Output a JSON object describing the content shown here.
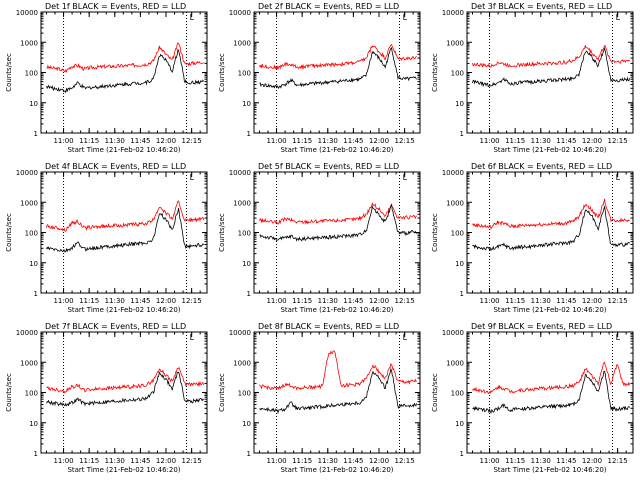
{
  "figure": {
    "background": "#ffffff",
    "axis_color": "#000000"
  },
  "chart_data": [
    {
      "type": "line",
      "title": "Det 1f BLACK = Events, RED = LLD",
      "xlabel": "Start Time (21-Feb-02 10:46:20)",
      "ylabel": "Counts/sec",
      "yscale": "log",
      "ylim": [
        1,
        10000
      ],
      "xlim": [
        10.78,
        12.4
      ],
      "x_ticks": [
        "11:00",
        "11:15",
        "11:30",
        "11:45",
        "12:00",
        "12:15"
      ],
      "y_ticks": [
        "1",
        "10",
        "100",
        "1000",
        "10000"
      ],
      "marker_label": "L",
      "vlines": [
        11.0,
        12.2
      ],
      "marker_time": 12.23,
      "series": [
        {
          "color": "#ff0000",
          "values": [
            150,
            140,
            130,
            110,
            160,
            170,
            130,
            145,
            150,
            155,
            160,
            160,
            165,
            170,
            175,
            180,
            190,
            240,
            700,
            400,
            250,
            1000,
            190,
            200,
            210,
            230
          ]
        },
        {
          "color": "#000000",
          "values": [
            35,
            30,
            28,
            25,
            30,
            45,
            30,
            32,
            33,
            35,
            37,
            38,
            40,
            42,
            44,
            45,
            48,
            60,
            400,
            250,
            110,
            600,
            50,
            45,
            48,
            50
          ]
        }
      ]
    },
    {
      "type": "line",
      "title": "Det 2f BLACK = Events, RED = LLD",
      "xlabel": "Start Time (21-Feb-02 10:46:20)",
      "ylabel": "Counts/sec",
      "yscale": "log",
      "ylim": [
        1,
        10000
      ],
      "xlim": [
        10.78,
        12.4
      ],
      "x_ticks": [
        "11:00",
        "11:15",
        "11:30",
        "11:45",
        "12:00",
        "12:15"
      ],
      "y_ticks": [
        "1",
        "10",
        "100",
        "1000",
        "10000"
      ],
      "marker_label": "L",
      "vlines": [
        11.0,
        12.2
      ],
      "marker_time": 12.23,
      "series": [
        {
          "color": "#ff0000",
          "values": [
            170,
            160,
            150,
            140,
            190,
            180,
            150,
            160,
            165,
            170,
            175,
            180,
            185,
            190,
            200,
            210,
            230,
            300,
            800,
            500,
            300,
            900,
            280,
            290,
            300,
            310
          ]
        },
        {
          "color": "#000000",
          "values": [
            40,
            38,
            35,
            33,
            40,
            55,
            38,
            40,
            42,
            44,
            46,
            48,
            50,
            52,
            55,
            58,
            60,
            80,
            500,
            300,
            150,
            700,
            70,
            60,
            62,
            65
          ]
        }
      ]
    },
    {
      "type": "line",
      "title": "Det 3f BLACK = Events, RED = LLD",
      "xlabel": "Start Time (21-Feb-02 10:46:20)",
      "ylabel": "Counts/sec",
      "yscale": "log",
      "ylim": [
        1,
        10000
      ],
      "xlim": [
        10.78,
        12.4
      ],
      "x_ticks": [
        "11:00",
        "11:15",
        "11:30",
        "11:45",
        "12:00",
        "12:15"
      ],
      "y_ticks": [
        "1",
        "10",
        "100",
        "1000",
        "10000"
      ],
      "marker_label": "L",
      "vlines": [
        11.0,
        12.2
      ],
      "marker_time": 12.23,
      "series": [
        {
          "color": "#ff0000",
          "values": [
            190,
            180,
            170,
            160,
            220,
            190,
            170,
            175,
            180,
            185,
            190,
            195,
            200,
            205,
            210,
            220,
            250,
            330,
            750,
            450,
            280,
            800,
            240,
            230,
            240,
            250
          ]
        },
        {
          "color": "#000000",
          "values": [
            50,
            45,
            40,
            38,
            45,
            60,
            42,
            45,
            47,
            48,
            50,
            52,
            54,
            56,
            58,
            60,
            65,
            90,
            550,
            320,
            160,
            650,
            60,
            55,
            58,
            60
          ]
        }
      ]
    },
    {
      "type": "line",
      "title": "Det 4f BLACK = Events, RED = LLD",
      "xlabel": "Start Time (21-Feb-02 10:46:20)",
      "ylabel": "Counts/sec",
      "yscale": "log",
      "ylim": [
        1,
        10000
      ],
      "xlim": [
        10.78,
        12.4
      ],
      "x_ticks": [
        "11:00",
        "11:15",
        "11:30",
        "11:45",
        "12:00",
        "12:15"
      ],
      "y_ticks": [
        "1",
        "10",
        "100",
        "1000",
        "10000"
      ],
      "marker_label": "L",
      "vlines": [
        11.0,
        12.2
      ],
      "marker_time": 12.23,
      "series": [
        {
          "color": "#ff0000",
          "values": [
            160,
            150,
            140,
            120,
            200,
            230,
            140,
            150,
            155,
            160,
            165,
            170,
            175,
            180,
            185,
            190,
            200,
            260,
            750,
            450,
            280,
            1100,
            250,
            260,
            270,
            280
          ]
        },
        {
          "color": "#000000",
          "values": [
            30,
            28,
            26,
            24,
            30,
            45,
            28,
            30,
            31,
            33,
            35,
            36,
            38,
            40,
            42,
            44,
            46,
            60,
            450,
            270,
            120,
            650,
            35,
            36,
            38,
            40
          ]
        }
      ]
    },
    {
      "type": "line",
      "title": "Det 5f BLACK = Events, RED = LLD",
      "xlabel": "Start Time (21-Feb-02 10:46:20)",
      "ylabel": "Counts/sec",
      "yscale": "log",
      "ylim": [
        1,
        10000
      ],
      "xlim": [
        10.78,
        12.4
      ],
      "x_ticks": [
        "11:00",
        "11:15",
        "11:30",
        "11:45",
        "12:00",
        "12:15"
      ],
      "y_ticks": [
        "1",
        "10",
        "100",
        "1000",
        "10000"
      ],
      "marker_label": "L",
      "vlines": [
        11.0,
        12.2
      ],
      "marker_time": 12.23,
      "series": [
        {
          "color": "#ff0000",
          "values": [
            260,
            240,
            220,
            210,
            280,
            260,
            220,
            225,
            230,
            235,
            240,
            245,
            250,
            255,
            260,
            270,
            300,
            400,
            900,
            600,
            350,
            800,
            320,
            310,
            320,
            330
          ]
        },
        {
          "color": "#000000",
          "values": [
            80,
            70,
            65,
            60,
            65,
            75,
            60,
            62,
            64,
            66,
            68,
            70,
            72,
            75,
            78,
            80,
            85,
            120,
            700,
            400,
            220,
            800,
            100,
            95,
            100,
            105
          ]
        }
      ]
    },
    {
      "type": "line",
      "title": "Det 6f BLACK = Events, RED = LLD",
      "xlabel": "Start Time (21-Feb-02 10:46:20)",
      "ylabel": "Counts/sec",
      "yscale": "log",
      "ylim": [
        1,
        10000
      ],
      "xlim": [
        10.78,
        12.4
      ],
      "x_ticks": [
        "11:00",
        "11:15",
        "11:30",
        "11:45",
        "12:00",
        "12:15"
      ],
      "y_ticks": [
        "1",
        "10",
        "100",
        "1000",
        "10000"
      ],
      "marker_label": "L",
      "vlines": [
        11.0,
        12.2
      ],
      "marker_time": 12.23,
      "series": [
        {
          "color": "#ff0000",
          "values": [
            180,
            170,
            160,
            150,
            220,
            200,
            160,
            165,
            170,
            175,
            180,
            185,
            190,
            195,
            200,
            205,
            230,
            350,
            900,
            550,
            300,
            1200,
            260,
            250,
            260,
            270
          ]
        },
        {
          "color": "#000000",
          "values": [
            35,
            32,
            30,
            28,
            33,
            40,
            30,
            32,
            33,
            34,
            36,
            38,
            40,
            42,
            44,
            46,
            50,
            90,
            600,
            350,
            140,
            700,
            40,
            38,
            40,
            42
          ]
        }
      ]
    },
    {
      "type": "line",
      "title": "Det 7f BLACK = Events, RED = LLD",
      "xlabel": "Start Time (21-Feb-02 10:46:20)",
      "ylabel": "Counts/sec",
      "yscale": "log",
      "ylim": [
        1,
        10000
      ],
      "xlim": [
        10.78,
        12.4
      ],
      "x_ticks": [
        "11:00",
        "11:15",
        "11:30",
        "11:45",
        "12:00",
        "12:15"
      ],
      "y_ticks": [
        "1",
        "10",
        "100",
        "1000",
        "10000"
      ],
      "marker_label": "L",
      "vlines": [
        11.0,
        12.2
      ],
      "marker_time": 12.23,
      "series": [
        {
          "color": "#ff0000",
          "values": [
            140,
            130,
            120,
            110,
            150,
            170,
            120,
            125,
            130,
            135,
            140,
            145,
            150,
            155,
            160,
            165,
            180,
            250,
            600,
            380,
            230,
            750,
            190,
            180,
            190,
            200
          ]
        },
        {
          "color": "#000000",
          "values": [
            50,
            45,
            42,
            40,
            45,
            60,
            42,
            44,
            46,
            48,
            50,
            52,
            54,
            56,
            58,
            60,
            65,
            100,
            450,
            280,
            130,
            550,
            55,
            50,
            55,
            60
          ]
        }
      ]
    },
    {
      "type": "line",
      "title": "Det 8f BLACK = Events, RED = LLD",
      "xlabel": "Start Time (21-Feb-02 10:46:20)",
      "ylabel": "Counts/sec",
      "yscale": "log",
      "ylim": [
        1,
        10000
      ],
      "xlim": [
        10.78,
        12.4
      ],
      "x_ticks": [
        "11:00",
        "11:15",
        "11:30",
        "11:45",
        "12:00",
        "12:15"
      ],
      "y_ticks": [
        "1",
        "10",
        "100",
        "1000",
        "10000"
      ],
      "marker_label": "L",
      "vlines": [
        11.0,
        12.2
      ],
      "marker_time": 12.23,
      "series": [
        {
          "color": "#ff0000",
          "values": [
            160,
            150,
            140,
            130,
            180,
            170,
            140,
            145,
            150,
            155,
            160,
            2000,
            2300,
            170,
            175,
            180,
            200,
            280,
            800,
            500,
            280,
            900,
            230,
            220,
            230,
            240
          ]
        },
        {
          "color": "#000000",
          "values": [
            30,
            28,
            26,
            24,
            28,
            45,
            28,
            30,
            31,
            33,
            34,
            36,
            38,
            40,
            42,
            44,
            46,
            70,
            500,
            300,
            140,
            600,
            35,
            36,
            38,
            40
          ]
        }
      ]
    },
    {
      "type": "line",
      "title": "Det 9f BLACK = Events, RED = LLD",
      "xlabel": "Start Time (21-Feb-02 10:46:20)",
      "ylabel": "Counts/sec",
      "yscale": "log",
      "ylim": [
        1,
        10000
      ],
      "xlim": [
        10.78,
        12.4
      ],
      "x_ticks": [
        "11:00",
        "11:15",
        "11:30",
        "11:45",
        "12:00",
        "12:15"
      ],
      "y_ticks": [
        "1",
        "10",
        "100",
        "1000",
        "10000"
      ],
      "marker_label": "L",
      "vlines": [
        11.0,
        12.2
      ],
      "marker_time": 12.23,
      "series": [
        {
          "color": "#ff0000",
          "values": [
            130,
            120,
            110,
            100,
            150,
            140,
            110,
            115,
            120,
            125,
            130,
            135,
            140,
            145,
            150,
            155,
            170,
            220,
            600,
            350,
            200,
            1100,
            170,
            900,
            180,
            190
          ]
        },
        {
          "color": "#000000",
          "values": [
            30,
            28,
            26,
            24,
            28,
            38,
            26,
            28,
            29,
            30,
            31,
            32,
            34,
            35,
            36,
            38,
            40,
            60,
            400,
            230,
            110,
            550,
            30,
            28,
            30,
            32
          ]
        }
      ]
    }
  ]
}
